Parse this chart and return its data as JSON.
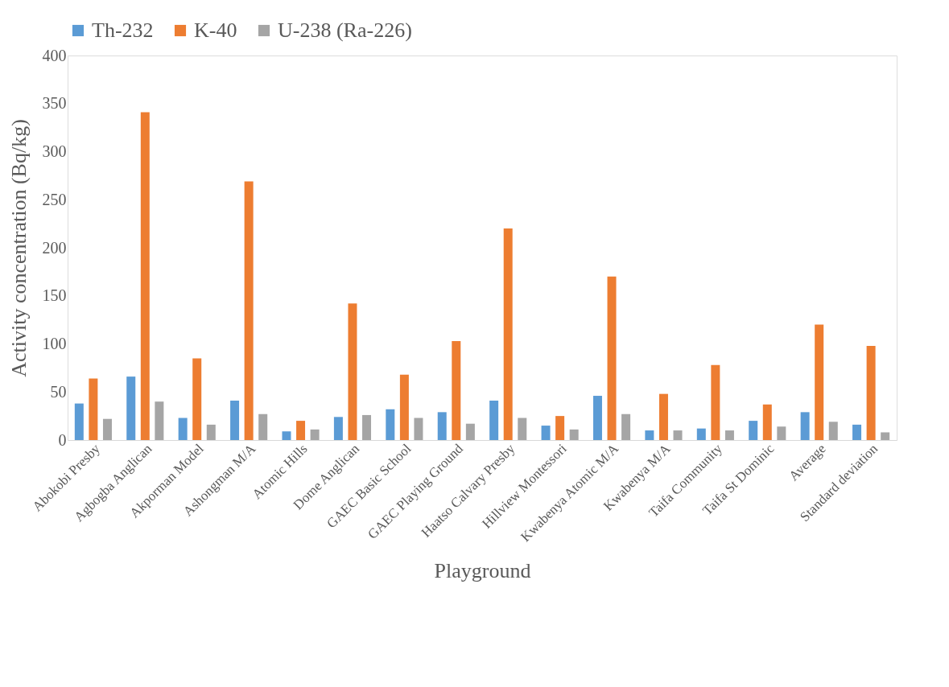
{
  "chart_data": {
    "type": "bar",
    "xlabel": "Playground",
    "ylabel": "Activity concentration (Bq/kg)",
    "categories": [
      "Abokobi Presby",
      "Agbogba Anglican",
      "Akporman Model",
      "Ashongman M/A",
      "Atomic Hills",
      "Dome Anglican",
      "GAEC Basic School",
      "GAEC Playing Ground",
      "Haatso Calvary Presby",
      "Hillview Montessori",
      "Kwabenya Atomic M/A",
      "Kwabenya M/A",
      "Taifa Community",
      "Taifa St Dominic",
      "Average",
      "Standard deviation"
    ],
    "series": [
      {
        "name": "Th-232",
        "color": "#5b9bd5",
        "values": [
          38,
          66,
          23,
          41,
          9,
          24,
          32,
          29,
          41,
          15,
          46,
          10,
          12,
          20,
          29,
          16
        ]
      },
      {
        "name": "K-40",
        "color": "#ed7d31",
        "values": [
          64,
          341,
          85,
          269,
          20,
          142,
          68,
          103,
          220,
          25,
          170,
          48,
          78,
          37,
          120,
          98
        ]
      },
      {
        "name": "U-238 (Ra-226)",
        "color": "#a5a5a5",
        "values": [
          22,
          40,
          16,
          27,
          11,
          26,
          23,
          17,
          23,
          11,
          27,
          10,
          10,
          14,
          19,
          8
        ]
      }
    ],
    "ylim": [
      0,
      400
    ],
    "yticks": [
      0,
      50,
      100,
      150,
      200,
      250,
      300,
      350,
      400
    ],
    "grid": false,
    "legend": "top"
  }
}
